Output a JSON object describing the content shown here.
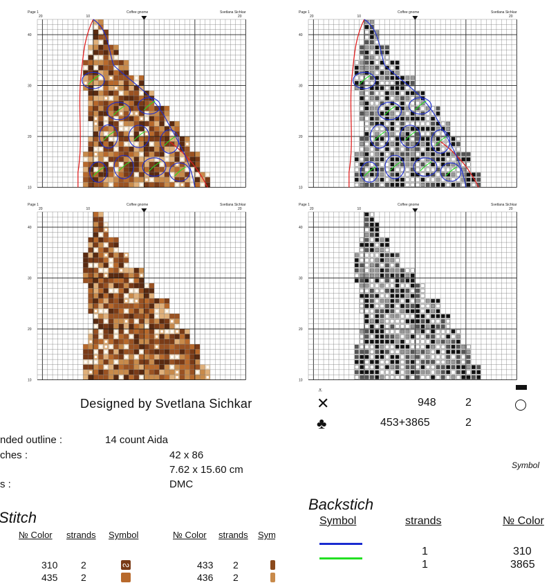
{
  "panels": [
    {
      "page": "Page 1",
      "title": "Coffee gnome",
      "author": "Svetlana Sichkar",
      "top_ticks": [
        "20",
        "10",
        "20"
      ],
      "left_ticks": [
        "40",
        "30",
        "20",
        "10"
      ]
    },
    {
      "page": "Page 1",
      "title": "Coffee gnome",
      "author": "Svetlana Sichkar",
      "top_ticks": [
        "20",
        "10",
        "20"
      ],
      "left_ticks": [
        "40",
        "30",
        "20",
        "10"
      ]
    },
    {
      "page": "Page 1",
      "title": "Coffee gnome",
      "author": "Svetlana Sichkar",
      "top_ticks": [
        "20",
        "10",
        "20"
      ],
      "left_ticks": [
        "40",
        "30",
        "20",
        "10"
      ]
    },
    {
      "page": "Page 1",
      "title": "Coffee gnome",
      "author": "Svetlana Sichkar",
      "top_ticks": [
        "20",
        "10",
        "20"
      ],
      "left_ticks": [
        "40",
        "30",
        "20",
        "10"
      ]
    }
  ],
  "designed_by": "Designed by Svetlana Sichkar",
  "info": {
    "row1_label": "nded outline :",
    "row1_value": "14 count Aida",
    "row2_label": "ches :",
    "row2_value": "42 x 86",
    "row3_value": "7.62 x 15.60 cm",
    "row4_label": "s :",
    "row4_value": "DMC"
  },
  "right_rows": [
    {
      "symbol": "x-icon",
      "color": "948",
      "strands": "2",
      "mark": "circle-icon"
    },
    {
      "symbol": "club-icon",
      "color": "453+3865",
      "strands": "2",
      "mark": ""
    }
  ],
  "symbol_label": "Symbol",
  "cross_stitch": {
    "title": "Stitch",
    "headers": {
      "color": "№ Color",
      "strands": "strands",
      "symbol": "Symbol"
    },
    "rows_left": [
      {
        "color": "310",
        "strands": "2",
        "swatch": "#7a3b17"
      },
      {
        "color": "435",
        "strands": "2",
        "swatch": "#b8692b"
      }
    ],
    "rows_right": [
      {
        "color": "433",
        "strands": "2",
        "swatch": "#8b4a1c"
      },
      {
        "color": "436",
        "strands": "2",
        "swatch": "#c88a4a"
      }
    ]
  },
  "backstitch": {
    "title": "Backstich",
    "headers": {
      "symbol": "Symbol",
      "strands": "strands",
      "color": "№ Color"
    },
    "rows": [
      {
        "line_color": "#1a2bd0",
        "strands": "1",
        "color": "310"
      },
      {
        "line_color": "#22e022",
        "strands": "1",
        "color": "3865"
      }
    ]
  }
}
